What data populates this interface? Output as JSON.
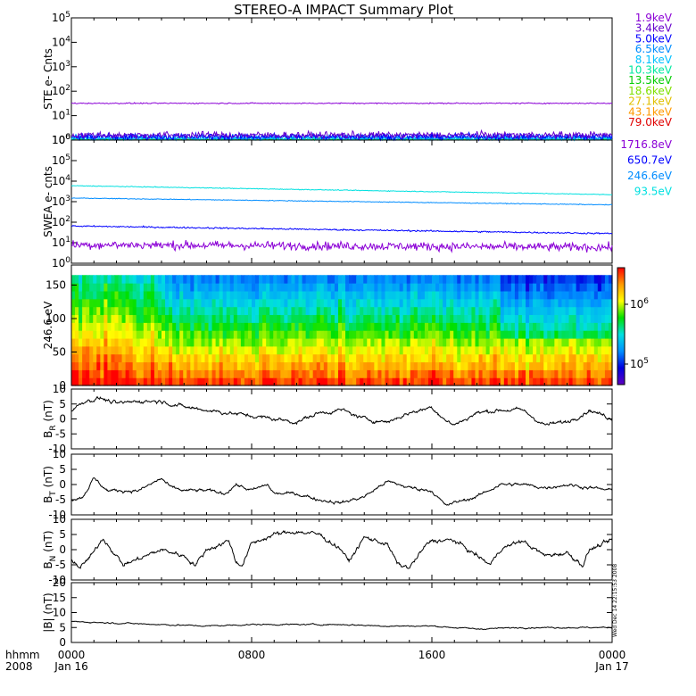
{
  "title": "STEREO-A IMPACT Summary Plot",
  "stamp": "Wed Dec 14 22:15:53 2008",
  "colors": {
    "violet": "#8b00d6",
    "purple": "#6600cc",
    "blue": "#0000ff",
    "skyblue": "#008cff",
    "lightblue": "#00c0ff",
    "cyan": "#00e0e0",
    "aqua": "#00e8a0",
    "green": "#00cc00",
    "lime": "#80e000",
    "gold": "#e0c000",
    "orange": "#ff9a00",
    "red": "#e00000",
    "black": "#000000"
  },
  "xaxis": {
    "label_row1": "hhmm",
    "label_row2": "2008",
    "ticks": [
      {
        "top": "0000",
        "bottom": "Jan 16"
      },
      {
        "top": "0800",
        "bottom": ""
      },
      {
        "top": "1600",
        "bottom": ""
      },
      {
        "top": "0000",
        "bottom": "Jan 17"
      }
    ],
    "range_hours": [
      0,
      24
    ]
  },
  "chart_data": [
    {
      "type": "line",
      "ylabel": "STE e- Cnts",
      "yscale": "log",
      "ylim": [
        1,
        100000
      ],
      "yticks": [
        {
          "b": "10",
          "e": "0"
        },
        {
          "b": "10",
          "e": "1"
        },
        {
          "b": "10",
          "e": "2"
        },
        {
          "b": "10",
          "e": "3"
        },
        {
          "b": "10",
          "e": "4"
        },
        {
          "b": "10",
          "e": "5"
        }
      ],
      "legend_position": "right",
      "series": [
        {
          "name": "1.9keV",
          "color": "#8b00d6",
          "level": 32,
          "noise": 0.05
        },
        {
          "name": "3.4keV",
          "color": "#6600cc",
          "level": 1.6,
          "noise": 0.3
        },
        {
          "name": "5.0keV",
          "color": "#0000ff",
          "level": 1.4,
          "noise": 0.3
        },
        {
          "name": "6.5keV",
          "color": "#008cff",
          "level": 1.3,
          "noise": 0.25
        },
        {
          "name": "8.1keV",
          "color": "#00c0ff",
          "level": 1.2,
          "noise": 0.2
        },
        {
          "name": "10.3keV",
          "color": "#00e8a0",
          "level": 1.1,
          "noise": 0.15
        },
        {
          "name": "13.5keV",
          "color": "#00cc00",
          "level": 1.05,
          "noise": 0.1
        },
        {
          "name": "18.6keV",
          "color": "#80e000",
          "level": 1.0,
          "noise": 0.05
        },
        {
          "name": "27.1keV",
          "color": "#e0c000",
          "level": 1.0,
          "noise": 0.05
        },
        {
          "name": "43.1keV",
          "color": "#ff9a00",
          "level": 1.0,
          "noise": 0.05
        },
        {
          "name": "79.0keV",
          "color": "#e00000",
          "level": 1.0,
          "noise": 0.05
        }
      ]
    },
    {
      "type": "line",
      "ylabel": "SWEA e- cnts",
      "yscale": "log",
      "ylim": [
        1,
        1000000
      ],
      "yticks": [
        {
          "b": "10",
          "e": "0"
        },
        {
          "b": "10",
          "e": "1"
        },
        {
          "b": "10",
          "e": "2"
        },
        {
          "b": "10",
          "e": "3"
        },
        {
          "b": "10",
          "e": "4"
        },
        {
          "b": "10",
          "e": "5"
        },
        {
          "b": "10",
          "e": "6"
        }
      ],
      "legend_position": "right",
      "series": [
        {
          "name": "1716.8eV",
          "color": "#8b00d6",
          "start": 8,
          "end": 6,
          "noise": 0.45
        },
        {
          "name": "650.7eV",
          "color": "#0000ff",
          "start": 65,
          "end": 28,
          "noise": 0.08
        },
        {
          "name": "246.6eV",
          "color": "#008cff",
          "start": 1500,
          "end": 700,
          "noise": 0.04
        },
        {
          "name": "93.5eV",
          "color": "#00e0e0",
          "start": 6000,
          "end": 2200,
          "noise": 0.04
        }
      ]
    },
    {
      "type": "heatmap",
      "ylabel": "246.6 eV",
      "ylim": [
        0,
        180
      ],
      "yticks": [
        "0",
        "50",
        "100",
        "150"
      ],
      "colorbar_labels": [
        {
          "b": "10",
          "e": "6"
        },
        {
          "b": "10",
          "e": "5"
        }
      ],
      "colorbar_colors": [
        "#ff0000",
        "#ff9a00",
        "#ffff00",
        "#00e000",
        "#00e0e0",
        "#0090ff",
        "#0000e0",
        "#6000c0"
      ]
    },
    {
      "type": "line",
      "ylabel": "B",
      "ylabel_sub": "R",
      "ylabel_unit": " (nT)",
      "ylim": [
        -10,
        10
      ],
      "yticks": [
        "-10",
        "-5",
        "0",
        "5",
        "10"
      ],
      "anchors": [
        [
          0,
          3
        ],
        [
          0.6,
          6
        ],
        [
          1.3,
          7
        ],
        [
          2,
          5
        ],
        [
          3,
          6
        ],
        [
          4,
          6
        ],
        [
          5,
          4
        ],
        [
          6,
          3
        ],
        [
          7,
          2
        ],
        [
          8,
          1
        ],
        [
          9,
          0
        ],
        [
          10,
          -1
        ],
        [
          11,
          2
        ],
        [
          12,
          3
        ],
        [
          13,
          0
        ],
        [
          14,
          -1
        ],
        [
          15,
          2
        ],
        [
          16,
          4
        ],
        [
          16.7,
          -1
        ],
        [
          17,
          -2
        ],
        [
          18,
          2
        ],
        [
          19,
          3
        ],
        [
          20,
          3
        ],
        [
          21,
          -2
        ],
        [
          22,
          -1
        ],
        [
          23,
          3
        ],
        [
          24,
          0
        ]
      ],
      "noise": 1.2
    },
    {
      "type": "line",
      "ylabel": "B",
      "ylabel_sub": "T",
      "ylabel_unit": " (nT)",
      "ylim": [
        -10,
        10
      ],
      "yticks": [
        "-10",
        "-5",
        "0",
        "5",
        "10"
      ],
      "anchors": [
        [
          0,
          -5
        ],
        [
          0.5,
          -4
        ],
        [
          1,
          2
        ],
        [
          1.6,
          -2
        ],
        [
          2,
          -2
        ],
        [
          3,
          -2
        ],
        [
          4,
          2
        ],
        [
          4.4,
          -1
        ],
        [
          5,
          -2
        ],
        [
          6,
          -2
        ],
        [
          6.8,
          -3
        ],
        [
          7.3,
          0
        ],
        [
          8,
          -2
        ],
        [
          8.7,
          0
        ],
        [
          9,
          -3
        ],
        [
          10,
          -3
        ],
        [
          11,
          -5
        ],
        [
          12,
          -6
        ],
        [
          13,
          -4
        ],
        [
          14,
          1
        ],
        [
          15,
          -1
        ],
        [
          16,
          -2
        ],
        [
          16.6,
          -7
        ],
        [
          17,
          -6
        ],
        [
          18,
          -4
        ],
        [
          19,
          0
        ],
        [
          20,
          0
        ],
        [
          21,
          -1
        ],
        [
          22,
          0
        ],
        [
          23,
          -1
        ],
        [
          24,
          -2
        ]
      ],
      "noise": 1.0
    },
    {
      "type": "line",
      "ylabel": "B",
      "ylabel_sub": "N",
      "ylabel_unit": " (nT)",
      "ylim": [
        -10,
        10
      ],
      "yticks": [
        "-10",
        "-5",
        "0",
        "5",
        "10"
      ],
      "anchors": [
        [
          0,
          -3
        ],
        [
          0.4,
          -6
        ],
        [
          1,
          -1
        ],
        [
          1.4,
          4
        ],
        [
          1.8,
          0
        ],
        [
          2.3,
          -5
        ],
        [
          3,
          -3
        ],
        [
          4,
          0
        ],
        [
          5,
          -2
        ],
        [
          5.5,
          -5
        ],
        [
          6,
          0
        ],
        [
          7,
          3
        ],
        [
          7.3,
          -4
        ],
        [
          7.6,
          -5
        ],
        [
          8,
          2
        ],
        [
          9,
          5
        ],
        [
          10,
          6
        ],
        [
          11,
          5
        ],
        [
          12,
          0
        ],
        [
          12.3,
          -4
        ],
        [
          13,
          4
        ],
        [
          14,
          2
        ],
        [
          14.5,
          -5
        ],
        [
          15,
          -6
        ],
        [
          15.7,
          1
        ],
        [
          16,
          3
        ],
        [
          17,
          3
        ],
        [
          18,
          -2
        ],
        [
          18.6,
          -5
        ],
        [
          19,
          0
        ],
        [
          20,
          3
        ],
        [
          21,
          -2
        ],
        [
          22,
          -1
        ],
        [
          22.7,
          -5
        ],
        [
          23,
          0
        ],
        [
          24,
          3
        ]
      ],
      "noise": 1.3
    },
    {
      "type": "line",
      "ylabel": "|B| (nT)",
      "ylim": [
        0,
        20
      ],
      "yticks": [
        "0",
        "5",
        "10",
        "15",
        "20"
      ],
      "anchors": [
        [
          0,
          7
        ],
        [
          2,
          6.5
        ],
        [
          4,
          6
        ],
        [
          6,
          5.5
        ],
        [
          8,
          6
        ],
        [
          10,
          6
        ],
        [
          12,
          6
        ],
        [
          14,
          5.5
        ],
        [
          16,
          5.5
        ],
        [
          18,
          4.5
        ],
        [
          20,
          5
        ],
        [
          22,
          5
        ],
        [
          24,
          5
        ]
      ],
      "noise": 0.4
    }
  ]
}
